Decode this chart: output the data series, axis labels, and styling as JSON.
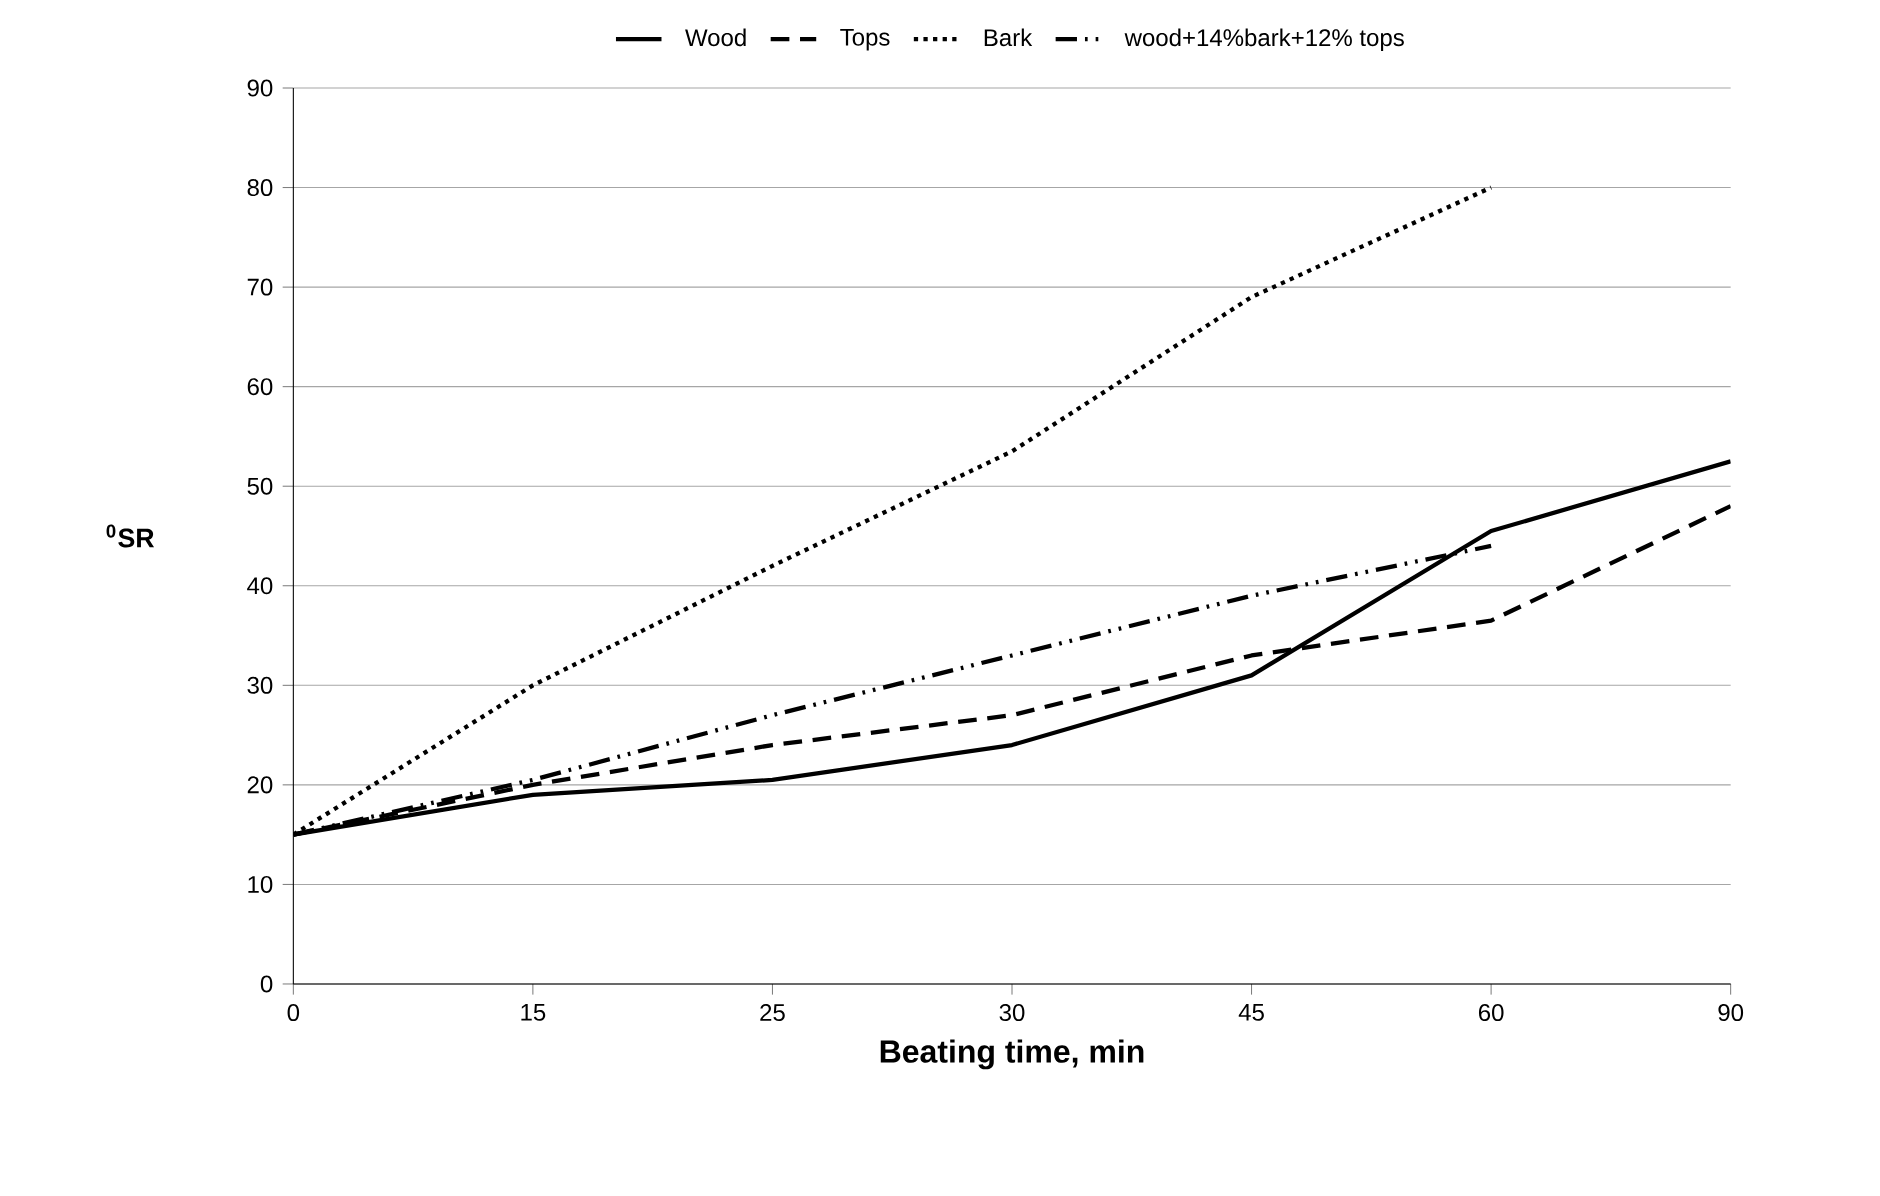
{
  "chart_data": {
    "type": "line",
    "xlabel": "Beating time, min",
    "ylabel": "$^{0}$SR",
    "categories": [
      "0",
      "15",
      "25",
      "30",
      "45",
      "60",
      "90"
    ],
    "series": [
      {
        "name": "Wood",
        "color": "#000000",
        "line_style": "solid",
        "values": [
          15,
          19,
          20.5,
          24,
          31,
          45.5,
          52.5
        ]
      },
      {
        "name": "Tops",
        "color": "#000000",
        "line_style": "dashed",
        "values": [
          15,
          20,
          24,
          27,
          33,
          36.5,
          48
        ]
      },
      {
        "name": "Bark",
        "color": "#000000",
        "line_style": "dotted",
        "values": [
          15,
          30,
          42,
          53.5,
          69,
          80,
          null
        ]
      },
      {
        "name": "wood+14%bark+12% tops",
        "color": "#000000",
        "line_style": "dashdot",
        "values": [
          15,
          20.5,
          27,
          33,
          39,
          44,
          null
        ]
      }
    ],
    "ylim": [
      0,
      90
    ],
    "yticks": [
      0,
      10,
      20,
      30,
      40,
      50,
      60,
      70,
      80,
      90
    ],
    "grid": "y",
    "legend": "top",
    "marker": "none"
  }
}
